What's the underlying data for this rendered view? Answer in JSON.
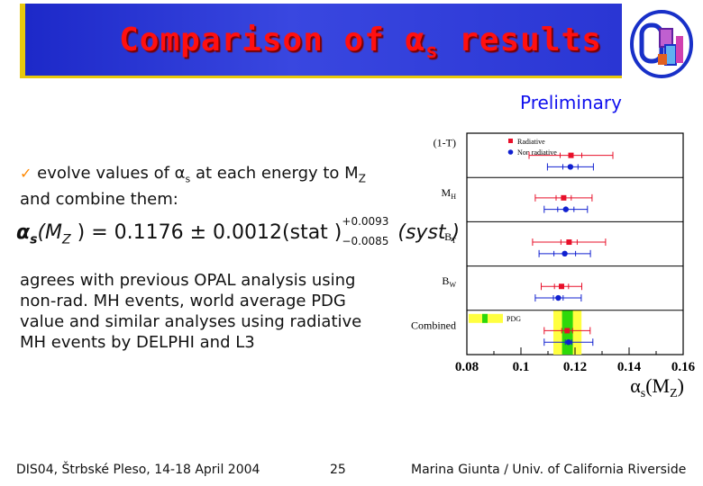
{
  "slide": {
    "title": "Comparison of αs results",
    "title_main": "Comparison of α",
    "title_sub": "s",
    "title_tail": " results",
    "preliminary": "Preliminary",
    "bullet_line1_a": "evolve values of α",
    "bullet_line1_sub": "s",
    "bullet_line1_b": " at each energy to M",
    "bullet_line1_sub2": "Z",
    "bullet_line2": "and combine them:",
    "formula": {
      "lhs_alpha": "α",
      "lhs_s": "s",
      "lhs_mz": "(M",
      "lhs_z": "Z",
      "lhs_close": " )",
      "eq": "= 0.1176 ± 0.0012(stat )",
      "sup_plus": "+0.0093",
      "sub_minus": "−0.0085",
      "syst": "(syst )"
    },
    "agrees_lines": [
      "agrees with previous OPAL analysis using",
      "non-rad. MH events, world average PDG",
      "value and similar analyses using  radiative",
      "MH events by DELPHI and L3"
    ],
    "footer_left": "DIS04, Štrbské Pleso, 14-18 April 2004",
    "footer_page": "25",
    "footer_right": "Marina Giunta / Univ. of California Riverside"
  },
  "chart_data": {
    "type": "scatter",
    "xlabel": "αs(MZ)",
    "xlabel_alpha": "α",
    "xlabel_s": "s",
    "xlabel_mz": "(M",
    "xlabel_z": "Z",
    "xlabel_close": ")",
    "xlim": [
      0.08,
      0.16
    ],
    "xticks": [
      "0.08",
      "0.1",
      "0.12",
      "0.14",
      "0.16"
    ],
    "xtick_values": [
      0.08,
      0.1,
      0.12,
      0.14,
      0.16
    ],
    "categories": [
      "(1-T)",
      "M_H",
      "B_T",
      "B_W",
      "Combined"
    ],
    "category_labels": [
      {
        "main": "(1-T)",
        "sub": ""
      },
      {
        "main": "M",
        "sub": "H"
      },
      {
        "main": "B",
        "sub": "T"
      },
      {
        "main": "B",
        "sub": "W"
      },
      {
        "main": "Combined",
        "sub": ""
      }
    ],
    "legend": [
      "Radiative",
      "Non radiative"
    ],
    "series": [
      {
        "name": "Radiative",
        "color": "#e8102a",
        "marker": "square",
        "values": [
          0.1185,
          0.1158,
          0.1178,
          0.115,
          0.1171
        ],
        "stat_err": [
          0.004,
          0.0028,
          0.003,
          0.0026,
          0.002
        ],
        "tot_err": [
          0.0155,
          0.0105,
          0.0135,
          0.0075,
          0.0085
        ]
      },
      {
        "name": "Non radiative",
        "color": "#1020d0",
        "marker": "circle",
        "values": [
          0.1183,
          0.1166,
          0.1162,
          0.1138,
          0.1176
        ],
        "stat_err": [
          0.0028,
          0.003,
          0.004,
          0.0018,
          0.0012
        ],
        "tot_err": [
          0.0085,
          0.008,
          0.0095,
          0.0085,
          0.009
        ]
      }
    ],
    "pdg": {
      "label": "PDG",
      "value": 0.1172,
      "error": 0.002,
      "color": "#2ed80a",
      "band_color": "#ffff40"
    }
  }
}
